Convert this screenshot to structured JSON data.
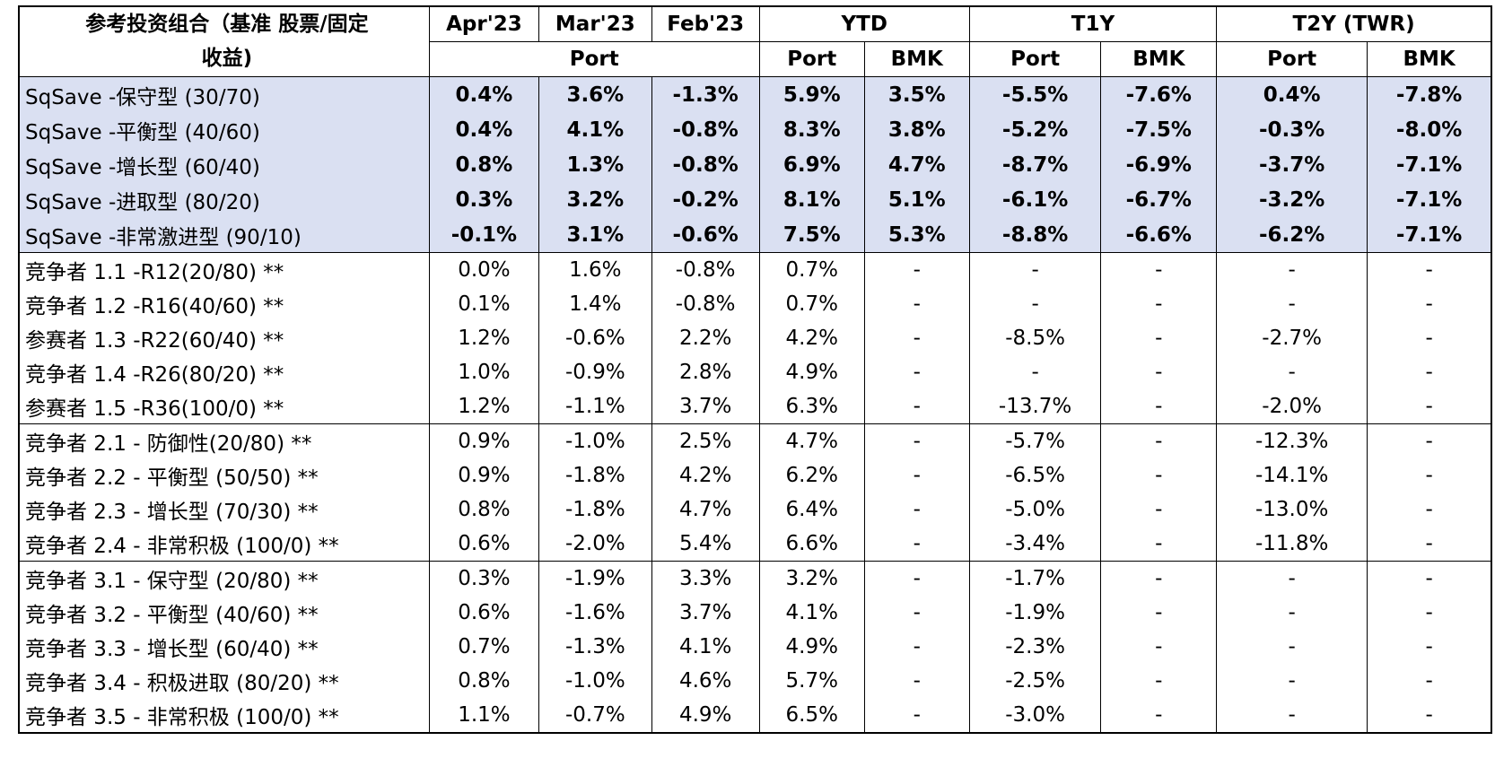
{
  "header": {
    "title": "参考投资组合（基准 股票/固定收益)",
    "title_line1": "参考投资组合（基准 股票/固定",
    "title_line2": "收益)",
    "col_apr": "Apr'23",
    "col_mar": "Mar'23",
    "col_feb": "Feb'23",
    "col_ytd": "YTD",
    "col_t1y": "T1Y",
    "col_t2y": "T2Y (TWR)",
    "sub_port_months": "Port",
    "sub_ytd_port": "Port",
    "sub_ytd_bmk": "BMK",
    "sub_t1y_port": "Port",
    "sub_t1y_bmk": "BMK",
    "sub_t2y_port": "Port",
    "sub_t2y_bmk": "BMK"
  },
  "colors": {
    "highlight": "#dae0f2",
    "border": "#000000"
  },
  "groups": [
    {
      "highlight": true,
      "rows": [
        {
          "name": "SqSave -保守型 (30/70)",
          "apr": "0.4%",
          "mar": "3.6%",
          "feb": "-1.3%",
          "ytd_port": "5.9%",
          "ytd_bmk": "3.5%",
          "t1y_port": "-5.5%",
          "t1y_bmk": "-7.6%",
          "t2y_port": "0.4%",
          "t2y_bmk": "-7.8%"
        },
        {
          "name": "SqSave -平衡型 (40/60)",
          "apr": "0.4%",
          "mar": "4.1%",
          "feb": "-0.8%",
          "ytd_port": "8.3%",
          "ytd_bmk": "3.8%",
          "t1y_port": "-5.2%",
          "t1y_bmk": "-7.5%",
          "t2y_port": "-0.3%",
          "t2y_bmk": "-8.0%"
        },
        {
          "name": "SqSave -增长型 (60/40)",
          "apr": "0.8%",
          "mar": "1.3%",
          "feb": "-0.8%",
          "ytd_port": "6.9%",
          "ytd_bmk": "4.7%",
          "t1y_port": "-8.7%",
          "t1y_bmk": "-6.9%",
          "t2y_port": "-3.7%",
          "t2y_bmk": "-7.1%"
        },
        {
          "name": "SqSave -进取型 (80/20)",
          "apr": "0.3%",
          "mar": "3.2%",
          "feb": "-0.2%",
          "ytd_port": "8.1%",
          "ytd_bmk": "5.1%",
          "t1y_port": "-6.1%",
          "t1y_bmk": "-6.7%",
          "t2y_port": "-3.2%",
          "t2y_bmk": "-7.1%"
        },
        {
          "name": "SqSave -非常激进型 (90/10)",
          "apr": "-0.1%",
          "mar": "3.1%",
          "feb": "-0.6%",
          "ytd_port": "7.5%",
          "ytd_bmk": "5.3%",
          "t1y_port": "-8.8%",
          "t1y_bmk": "-6.6%",
          "t2y_port": "-6.2%",
          "t2y_bmk": "-7.1%"
        }
      ]
    },
    {
      "highlight": false,
      "rows": [
        {
          "name": "竞争者 1.1 -R12(20/80) **",
          "apr": "0.0%",
          "mar": "1.6%",
          "feb": "-0.8%",
          "ytd_port": "0.7%",
          "ytd_bmk": "-",
          "t1y_port": "-",
          "t1y_bmk": "-",
          "t2y_port": "-",
          "t2y_bmk": "-"
        },
        {
          "name": "竞争者 1.2 -R16(40/60) **",
          "apr": "0.1%",
          "mar": "1.4%",
          "feb": "-0.8%",
          "ytd_port": "0.7%",
          "ytd_bmk": "-",
          "t1y_port": "-",
          "t1y_bmk": "-",
          "t2y_port": "-",
          "t2y_bmk": "-"
        },
        {
          "name": "参赛者 1.3 -R22(60/40) **",
          "apr": "1.2%",
          "mar": "-0.6%",
          "feb": "2.2%",
          "ytd_port": "4.2%",
          "ytd_bmk": "-",
          "t1y_port": "-8.5%",
          "t1y_bmk": "-",
          "t2y_port": "-2.7%",
          "t2y_bmk": "-"
        },
        {
          "name": "竞争者 1.4 -R26(80/20) **",
          "apr": "1.0%",
          "mar": "-0.9%",
          "feb": "2.8%",
          "ytd_port": "4.9%",
          "ytd_bmk": "-",
          "t1y_port": "-",
          "t1y_bmk": "-",
          "t2y_port": "-",
          "t2y_bmk": "-"
        },
        {
          "name": "参赛者 1.5 -R36(100/0) **",
          "apr": "1.2%",
          "mar": "-1.1%",
          "feb": "3.7%",
          "ytd_port": "6.3%",
          "ytd_bmk": "-",
          "t1y_port": "-13.7%",
          "t1y_bmk": "-",
          "t2y_port": "-2.0%",
          "t2y_bmk": "-"
        }
      ]
    },
    {
      "highlight": false,
      "rows": [
        {
          "name": "竞争者 2.1 - 防御性(20/80) **",
          "apr": "0.9%",
          "mar": "-1.0%",
          "feb": "2.5%",
          "ytd_port": "4.7%",
          "ytd_bmk": "-",
          "t1y_port": "-5.7%",
          "t1y_bmk": "-",
          "t2y_port": "-12.3%",
          "t2y_bmk": "-"
        },
        {
          "name": "竞争者 2.2 - 平衡型 (50/50) **",
          "apr": "0.9%",
          "mar": "-1.8%",
          "feb": "4.2%",
          "ytd_port": "6.2%",
          "ytd_bmk": "-",
          "t1y_port": "-6.5%",
          "t1y_bmk": "-",
          "t2y_port": "-14.1%",
          "t2y_bmk": "-"
        },
        {
          "name": "竞争者 2.3 - 增长型 (70/30) **",
          "apr": "0.8%",
          "mar": "-1.8%",
          "feb": "4.7%",
          "ytd_port": "6.4%",
          "ytd_bmk": "-",
          "t1y_port": "-5.0%",
          "t1y_bmk": "-",
          "t2y_port": "-13.0%",
          "t2y_bmk": "-"
        },
        {
          "name": "竞争者 2.4 - 非常积极 (100/0) **",
          "apr": "0.6%",
          "mar": "-2.0%",
          "feb": "5.4%",
          "ytd_port": "6.6%",
          "ytd_bmk": "-",
          "t1y_port": "-3.4%",
          "t1y_bmk": "-",
          "t2y_port": "-11.8%",
          "t2y_bmk": "-"
        }
      ]
    },
    {
      "highlight": false,
      "rows": [
        {
          "name": "竞争者 3.1 - 保守型 (20/80) **",
          "apr": "0.3%",
          "mar": "-1.9%",
          "feb": "3.3%",
          "ytd_port": "3.2%",
          "ytd_bmk": "-",
          "t1y_port": "-1.7%",
          "t1y_bmk": "-",
          "t2y_port": "-",
          "t2y_bmk": "-"
        },
        {
          "name": "竞争者 3.2 - 平衡型 (40/60) **",
          "apr": "0.6%",
          "mar": "-1.6%",
          "feb": "3.7%",
          "ytd_port": "4.1%",
          "ytd_bmk": "-",
          "t1y_port": "-1.9%",
          "t1y_bmk": "-",
          "t2y_port": "-",
          "t2y_bmk": "-"
        },
        {
          "name": "竞争者 3.3 - 增长型 (60/40) **",
          "apr": "0.7%",
          "mar": "-1.3%",
          "feb": "4.1%",
          "ytd_port": "4.9%",
          "ytd_bmk": "-",
          "t1y_port": "-2.3%",
          "t1y_bmk": "-",
          "t2y_port": "-",
          "t2y_bmk": "-"
        },
        {
          "name": "竞争者 3.4 - 积极进取 (80/20) **",
          "apr": "0.8%",
          "mar": "-1.0%",
          "feb": "4.6%",
          "ytd_port": "5.7%",
          "ytd_bmk": "-",
          "t1y_port": "-2.5%",
          "t1y_bmk": "-",
          "t2y_port": "-",
          "t2y_bmk": "-"
        },
        {
          "name": "竞争者 3.5 - 非常积极 (100/0) **",
          "apr": "1.1%",
          "mar": "-0.7%",
          "feb": "4.9%",
          "ytd_port": "6.5%",
          "ytd_bmk": "-",
          "t1y_port": "-3.0%",
          "t1y_bmk": "-",
          "t2y_port": "-",
          "t2y_bmk": "-"
        }
      ]
    }
  ]
}
